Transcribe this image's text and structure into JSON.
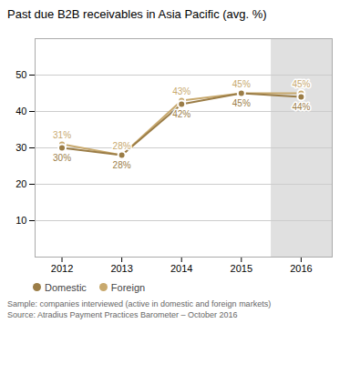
{
  "chart_data": {
    "type": "line",
    "title": "Past due B2B receivables in Asia Pacific (avg. %)",
    "x": [
      2012,
      2013,
      2014,
      2015,
      2016
    ],
    "series": [
      {
        "name": "Domestic",
        "color": "#9B7D47",
        "values": [
          30,
          28,
          42,
          45,
          44
        ],
        "value_labels": [
          "30%",
          "28%",
          "42%",
          "45%",
          "44%"
        ]
      },
      {
        "name": "Foreign",
        "color": "#C8A96E",
        "values": [
          31,
          28,
          43,
          45,
          45
        ],
        "value_labels": [
          "31%",
          "28%",
          "43%",
          "45%",
          "45%"
        ]
      }
    ],
    "xlim": [
      2011.55,
      2016.52
    ],
    "xticks": [
      2012,
      2013,
      2014,
      2015,
      2016
    ],
    "ylim": [
      0,
      60
    ],
    "yticks": [
      10,
      20,
      30,
      40,
      50
    ],
    "grid": true,
    "data_labels": true,
    "marker": "circle",
    "legend": "bottom",
    "highlight": {
      "x": [
        2015.5,
        2016.52
      ],
      "color": "#e0e0e0"
    },
    "annotations": [
      "Sample: companies interviewed (active in domestic and foreign markets)",
      "Source: Atradius Payment Practices Barometer – October 2016"
    ]
  }
}
